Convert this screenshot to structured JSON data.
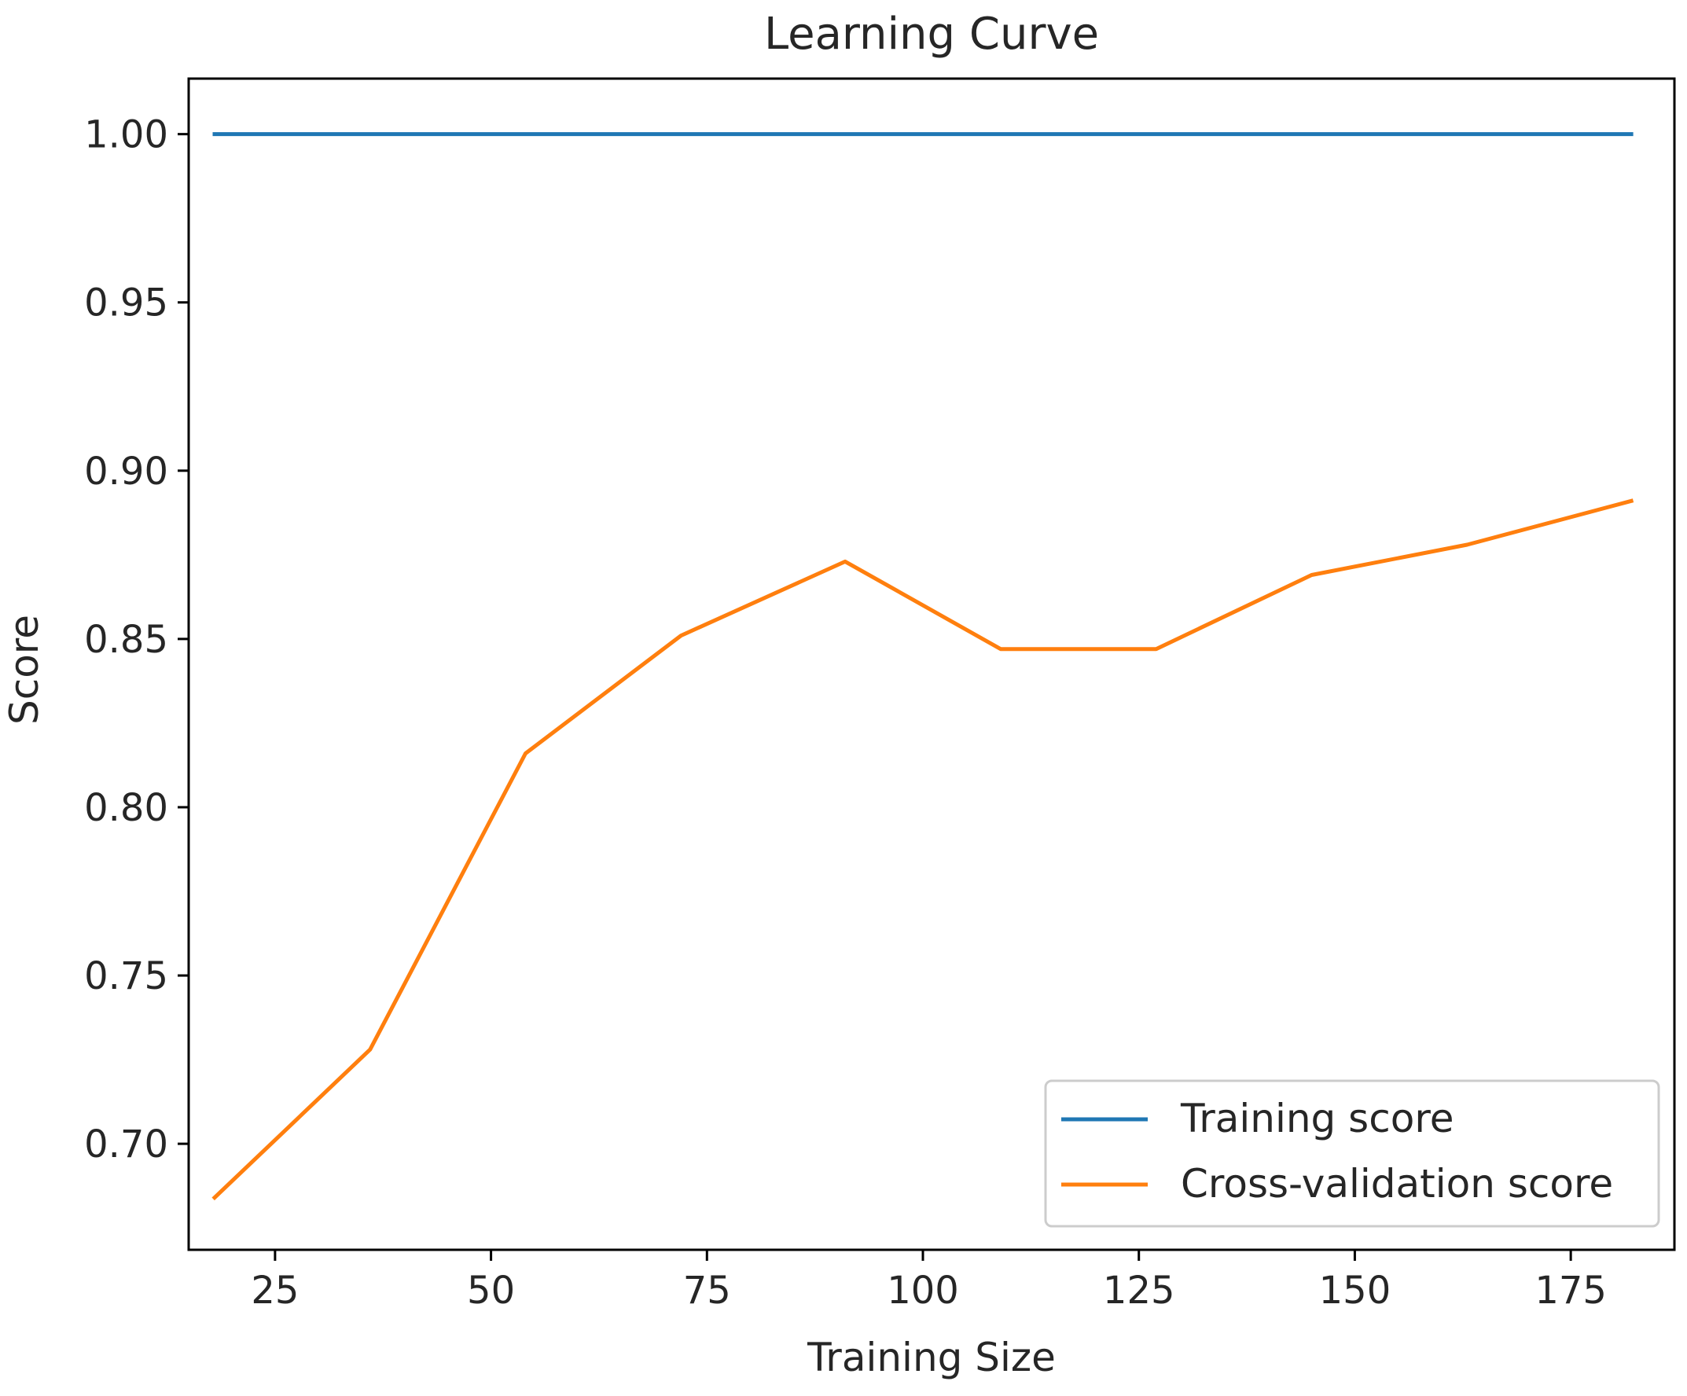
{
  "chart_data": {
    "type": "line",
    "title": "Learning Curve",
    "xlabel": "Training Size",
    "ylabel": "Score",
    "xlim": [
      15,
      187
    ],
    "ylim": [
      0.6685,
      1.0165
    ],
    "xticks": [
      25,
      50,
      75,
      100,
      125,
      150,
      175
    ],
    "xtick_labels": [
      "25",
      "50",
      "75",
      "100",
      "125",
      "150",
      "175"
    ],
    "yticks": [
      0.7,
      0.75,
      0.8,
      0.85,
      0.9,
      0.95,
      1.0
    ],
    "ytick_labels": [
      "0.70",
      "0.75",
      "0.80",
      "0.85",
      "0.90",
      "0.95",
      "1.00"
    ],
    "grid": false,
    "legend_position": "lower-right",
    "x": [
      18,
      36,
      54,
      72,
      91,
      109,
      127,
      145,
      163,
      182
    ],
    "series": [
      {
        "name": "Training score",
        "color": "#1f77b4",
        "values": [
          1.0,
          1.0,
          1.0,
          1.0,
          1.0,
          1.0,
          1.0,
          1.0,
          1.0,
          1.0
        ]
      },
      {
        "name": "Cross-validation score",
        "color": "#ff7f0e",
        "values": [
          0.684,
          0.728,
          0.816,
          0.851,
          0.873,
          0.847,
          0.847,
          0.869,
          0.878,
          0.891
        ]
      }
    ]
  }
}
